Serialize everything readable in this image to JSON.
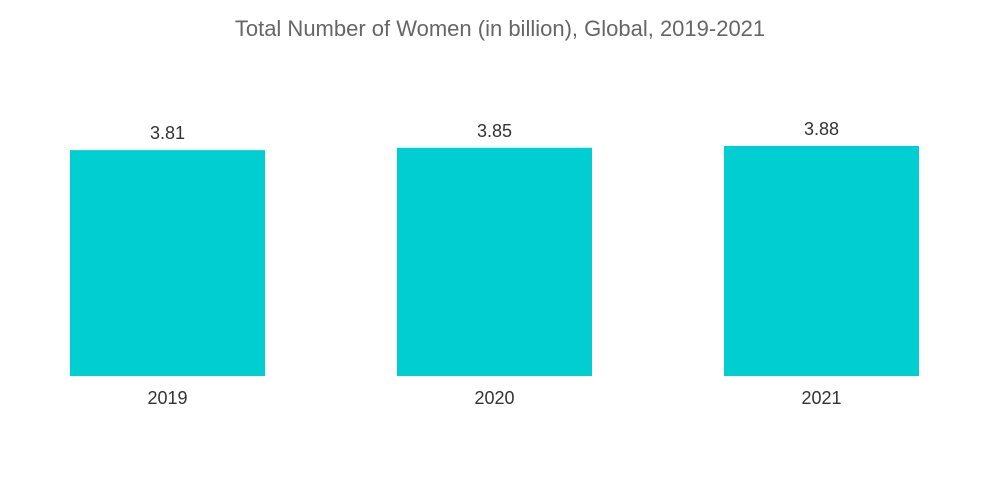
{
  "chart_data": {
    "type": "bar",
    "title": "Total Number of Women (in billion), Global, 2019-2021",
    "xlabel": "",
    "ylabel": "",
    "categories": [
      "2019",
      "2020",
      "2021"
    ],
    "values": [
      3.81,
      3.85,
      3.88
    ],
    "value_labels": [
      "3.81",
      "3.85",
      "3.88"
    ],
    "ylim": [
      0,
      3.88
    ],
    "grid": false,
    "legend": "none",
    "colors": {
      "bar": "#00CED1"
    }
  }
}
